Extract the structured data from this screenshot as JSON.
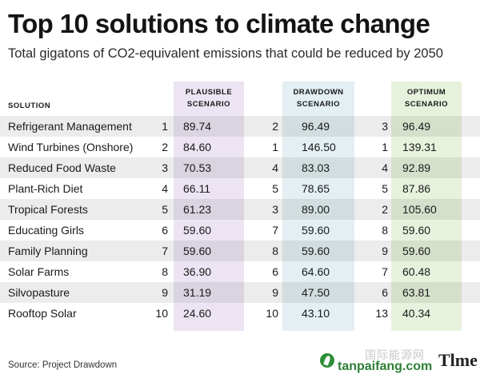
{
  "title": "Top 10 solutions to climate change",
  "subtitle": "Total gigatons of CO2-equivalent emissions that could be reduced by 2050",
  "source": "Source: Project Drawdown",
  "watermark": {
    "chinese": "国际能源网",
    "site": "tanpaifang.com",
    "brand": "Tlme"
  },
  "colors": {
    "plausible_band": "#ece4f2",
    "drawdown_band": "#e3eff3",
    "optimum_band": "#e7f2dc",
    "row_shade": "#ededed"
  },
  "chart_data": {
    "type": "table",
    "title": "Top 10 solutions to climate change",
    "subtitle": "Total gigatons of CO2-equivalent emissions that could be reduced by 2050",
    "columns": [
      "SOLUTION",
      "PLAUSIBLE SCENARIO",
      "DRAWDOWN SCENARIO",
      "OPTIMUM SCENARIO"
    ],
    "headers": {
      "solution": "SOLUTION",
      "plausible": [
        "PLAUSIBLE",
        "SCENARIO"
      ],
      "drawdown": [
        "DRAWDOWN",
        "SCENARIO"
      ],
      "optimum": [
        "OPTIMUM",
        "SCENARIO"
      ]
    },
    "rows": [
      {
        "solution": "Refrigerant Management",
        "plausible_rank": "1",
        "plausible": "89.74",
        "drawdown_rank": "2",
        "drawdown": "96.49",
        "optimum_rank": "3",
        "optimum": "96.49"
      },
      {
        "solution": "Wind Turbines (Onshore)",
        "plausible_rank": "2",
        "plausible": "84.60",
        "drawdown_rank": "1",
        "drawdown": "146.50",
        "optimum_rank": "1",
        "optimum": "139.31"
      },
      {
        "solution": "Reduced Food Waste",
        "plausible_rank": "3",
        "plausible": "70.53",
        "drawdown_rank": "4",
        "drawdown": "83.03",
        "optimum_rank": "4",
        "optimum": "92.89"
      },
      {
        "solution": "Plant-Rich Diet",
        "plausible_rank": "4",
        "plausible": "66.11",
        "drawdown_rank": "5",
        "drawdown": "78.65",
        "optimum_rank": "5",
        "optimum": "87.86"
      },
      {
        "solution": "Tropical Forests",
        "plausible_rank": "5",
        "plausible": "61.23",
        "drawdown_rank": "3",
        "drawdown": "89.00",
        "optimum_rank": "2",
        "optimum": "105.60"
      },
      {
        "solution": "Educating Girls",
        "plausible_rank": "6",
        "plausible": "59.60",
        "drawdown_rank": "7",
        "drawdown": "59.60",
        "optimum_rank": "8",
        "optimum": "59.60"
      },
      {
        "solution": "Family Planning",
        "plausible_rank": "7",
        "plausible": "59.60",
        "drawdown_rank": "8",
        "drawdown": "59.60",
        "optimum_rank": "9",
        "optimum": "59.60"
      },
      {
        "solution": "Solar Farms",
        "plausible_rank": "8",
        "plausible": "36.90",
        "drawdown_rank": "6",
        "drawdown": "64.60",
        "optimum_rank": "7",
        "optimum": "60.48"
      },
      {
        "solution": "Silvopasture",
        "plausible_rank": "9",
        "plausible": "31.19",
        "drawdown_rank": "9",
        "drawdown": "47.50",
        "optimum_rank": "6",
        "optimum": "63.81"
      },
      {
        "solution": "Rooftop Solar",
        "plausible_rank": "10",
        "plausible": "24.60",
        "drawdown_rank": "10",
        "drawdown": "43.10",
        "optimum_rank": "13",
        "optimum": "40.34"
      }
    ]
  }
}
